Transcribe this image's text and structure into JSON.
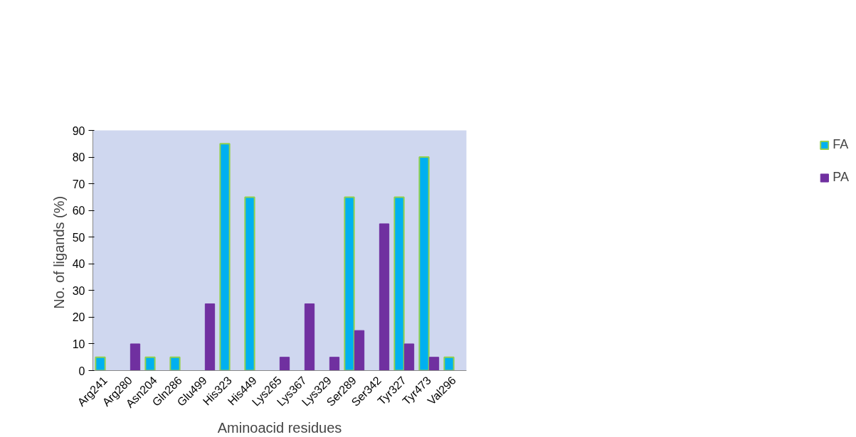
{
  "chart_data": {
    "type": "bar",
    "xlabel": "Aminoacid residues",
    "ylabel": "No. of  ligands (%)",
    "categories": [
      "Arg241",
      "Arg280",
      "Asn204",
      "Gln286",
      "Glu499",
      "His323",
      "His449",
      "Lys265",
      "Lys367",
      "Lys329",
      "Ser289",
      "Ser342",
      "Tyr327",
      "Tyr473",
      "Val296"
    ],
    "series": [
      {
        "name": "FA",
        "color": "#00b0f0",
        "values": [
          5,
          null,
          5,
          5,
          null,
          85,
          65,
          null,
          null,
          null,
          65,
          null,
          65,
          80,
          5
        ]
      },
      {
        "name": "PA",
        "color": "#7030a0",
        "values": [
          null,
          10,
          null,
          null,
          25,
          null,
          null,
          5,
          25,
          5,
          15,
          55,
          10,
          5,
          null
        ]
      }
    ],
    "ylim": [
      0,
      90
    ],
    "yticks": [
      0,
      10,
      20,
      30,
      40,
      50,
      60,
      70,
      80,
      90
    ],
    "grid": false,
    "legend": "right"
  }
}
